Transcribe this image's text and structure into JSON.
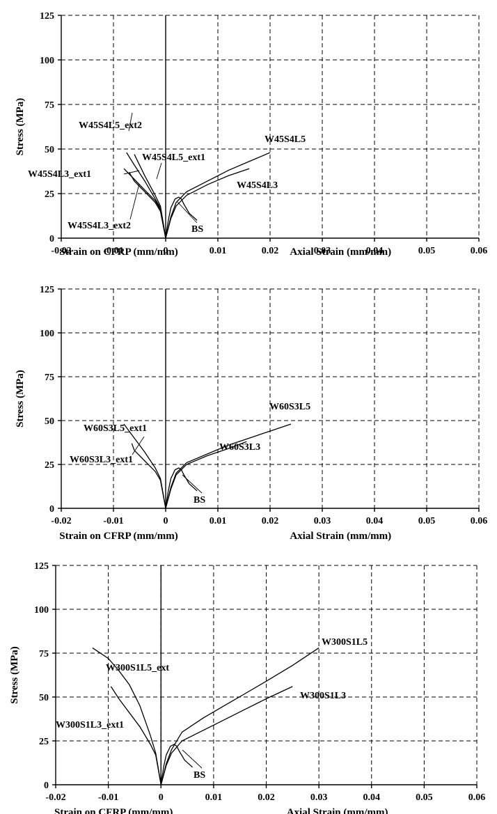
{
  "chart_data": [
    {
      "type": "line",
      "ylabel": "Stress (MPa)",
      "xlabel_left": "Strain on CFRP (mm/mm)",
      "xlabel_right": "Axial Strain (mm/mm)",
      "xlim": [
        -0.02,
        0.06
      ],
      "ylim": [
        0,
        125
      ],
      "xticks": [
        "-0.02",
        "-0.01",
        "0",
        "0.01",
        "0.02",
        "0.03",
        "0.04",
        "0.05",
        "0.06"
      ],
      "yticks": [
        "0",
        "25",
        "50",
        "75",
        "100",
        "125"
      ],
      "grid": true,
      "series": [
        {
          "name": "BS",
          "x": [
            0,
            0.0005,
            0.001,
            0.0018,
            0.0025,
            0.003,
            0.0035,
            0.0045,
            0.006
          ],
          "y": [
            0,
            10,
            17,
            22,
            23,
            22,
            19,
            14,
            10
          ]
        },
        {
          "name": "W45S4L5",
          "x": [
            0,
            0.001,
            0.002,
            0.004,
            0.008,
            0.012,
            0.016,
            0.02
          ],
          "y": [
            0,
            12,
            20,
            26,
            32,
            38,
            43,
            48
          ]
        },
        {
          "name": "W45S4L3",
          "x": [
            0,
            0.001,
            0.002,
            0.004,
            0.008,
            0.012,
            0.016
          ],
          "y": [
            0,
            11,
            18,
            24,
            30,
            35,
            39
          ]
        },
        {
          "name": "W45S4L5_ext2",
          "x": [
            0,
            -0.001,
            -0.002,
            -0.004,
            -0.006
          ],
          "y": [
            0,
            18,
            24,
            35,
            47
          ]
        },
        {
          "name": "W45S4L5_ext1",
          "x": [
            0,
            -0.001,
            -0.002,
            -0.004,
            -0.006,
            -0.0075
          ],
          "y": [
            0,
            17,
            22,
            32,
            41,
            48
          ]
        },
        {
          "name": "W45S4L3_ext1",
          "x": [
            0,
            -0.001,
            -0.002,
            -0.004,
            -0.006,
            -0.008
          ],
          "y": [
            0,
            16,
            21,
            27,
            33,
            39
          ]
        },
        {
          "name": "W45S4L3_ext2",
          "x": [
            0,
            -0.001,
            -0.002,
            -0.004,
            -0.006,
            -0.007
          ],
          "y": [
            0,
            15,
            20,
            26,
            32,
            37
          ]
        }
      ],
      "annotations": [
        "W45S4L5_ext2",
        "W45S4L5_ext1",
        "W45S4L3_ext1",
        "W45S4L3_ext2",
        "W45S4L5",
        "W45S4L3",
        "BS"
      ]
    },
    {
      "type": "line",
      "ylabel": "Stress (MPa)",
      "xlabel_left": "Strain on CFRP (mm/mm)",
      "xlabel_right": "Axial Strain (mm/mm)",
      "xlim": [
        -0.02,
        0.06
      ],
      "ylim": [
        0,
        125
      ],
      "xticks": [
        "-0.02",
        "-0.01",
        "0",
        "0.01",
        "0.02",
        "0.03",
        "0.04",
        "0.05",
        "0.06"
      ],
      "yticks": [
        "0",
        "25",
        "50",
        "75",
        "100",
        "125"
      ],
      "grid": true,
      "series": [
        {
          "name": "BS",
          "x": [
            0,
            0.0005,
            0.001,
            0.0018,
            0.0025,
            0.003,
            0.0035,
            0.0045,
            0.006
          ],
          "y": [
            0,
            10,
            17,
            22,
            23,
            22,
            19,
            14,
            10
          ]
        },
        {
          "name": "W60S3L5",
          "x": [
            0,
            0.001,
            0.002,
            0.004,
            0.008,
            0.012,
            0.016,
            0.02,
            0.024
          ],
          "y": [
            0,
            12,
            20,
            26,
            31,
            36,
            40,
            44,
            48
          ]
        },
        {
          "name": "W60S3L3",
          "x": [
            0,
            0.001,
            0.002,
            0.004,
            0.008,
            0.012,
            0.0155
          ],
          "y": [
            0,
            11,
            19,
            25,
            30,
            34,
            38
          ]
        },
        {
          "name": "W60S3L5_ext1",
          "x": [
            0,
            -0.001,
            -0.002,
            -0.004,
            -0.006,
            -0.008
          ],
          "y": [
            0,
            17,
            23,
            32,
            40,
            48
          ]
        },
        {
          "name": "W60S3L3_ext1",
          "x": [
            0,
            -0.001,
            -0.002,
            -0.004,
            -0.006,
            -0.0065
          ],
          "y": [
            0,
            16,
            21,
            27,
            33,
            37
          ]
        }
      ],
      "annotations": [
        "W60S3L5_ext1",
        "W60S3L3_ext1",
        "W60S3L5",
        "W60S3L3",
        "BS"
      ]
    },
    {
      "type": "line",
      "ylabel": "Stress (MPa)",
      "xlabel_left": "Strain on CFRP (mm/mm)",
      "xlabel_right": "Axial Strain (mm/mm)",
      "xlim": [
        -0.02,
        0.06
      ],
      "ylim": [
        0,
        125
      ],
      "xticks": [
        "-0.02",
        "-0.01",
        "0",
        "0.01",
        "0.02",
        "0.03",
        "0.04",
        "0.05",
        "0.06"
      ],
      "yticks": [
        "0",
        "25",
        "50",
        "75",
        "100",
        "125"
      ],
      "grid": true,
      "series": [
        {
          "name": "BS",
          "x": [
            0,
            0.0005,
            0.001,
            0.0018,
            0.0025,
            0.003,
            0.0035,
            0.0045,
            0.006
          ],
          "y": [
            0,
            10,
            17,
            22,
            23,
            22,
            19,
            14,
            10
          ]
        },
        {
          "name": "W300S1L5",
          "x": [
            0,
            0.001,
            0.002,
            0.004,
            0.008,
            0.012,
            0.016,
            0.02,
            0.025,
            0.03
          ],
          "y": [
            0,
            12,
            20,
            30,
            38,
            45,
            52,
            59,
            68,
            78
          ]
        },
        {
          "name": "W300S1L3",
          "x": [
            0,
            0.001,
            0.002,
            0.004,
            0.008,
            0.012,
            0.016,
            0.02,
            0.025
          ],
          "y": [
            0,
            11,
            18,
            25,
            31,
            37,
            43,
            49,
            56
          ]
        },
        {
          "name": "W300S1L5_ext",
          "x": [
            0,
            -0.001,
            -0.002,
            -0.004,
            -0.006,
            -0.008,
            -0.01,
            -0.013
          ],
          "y": [
            0,
            18,
            28,
            45,
            57,
            65,
            72,
            78
          ]
        },
        {
          "name": "W300S1L3_ext1",
          "x": [
            0,
            -0.001,
            -0.002,
            -0.004,
            -0.006,
            -0.008,
            -0.0095
          ],
          "y": [
            0,
            17,
            23,
            33,
            41,
            49,
            56
          ]
        }
      ],
      "annotations": [
        "W300S1L5_ext",
        "W300S1L3_ext1",
        "W300S1L5",
        "W300S1L3",
        "BS"
      ]
    }
  ]
}
